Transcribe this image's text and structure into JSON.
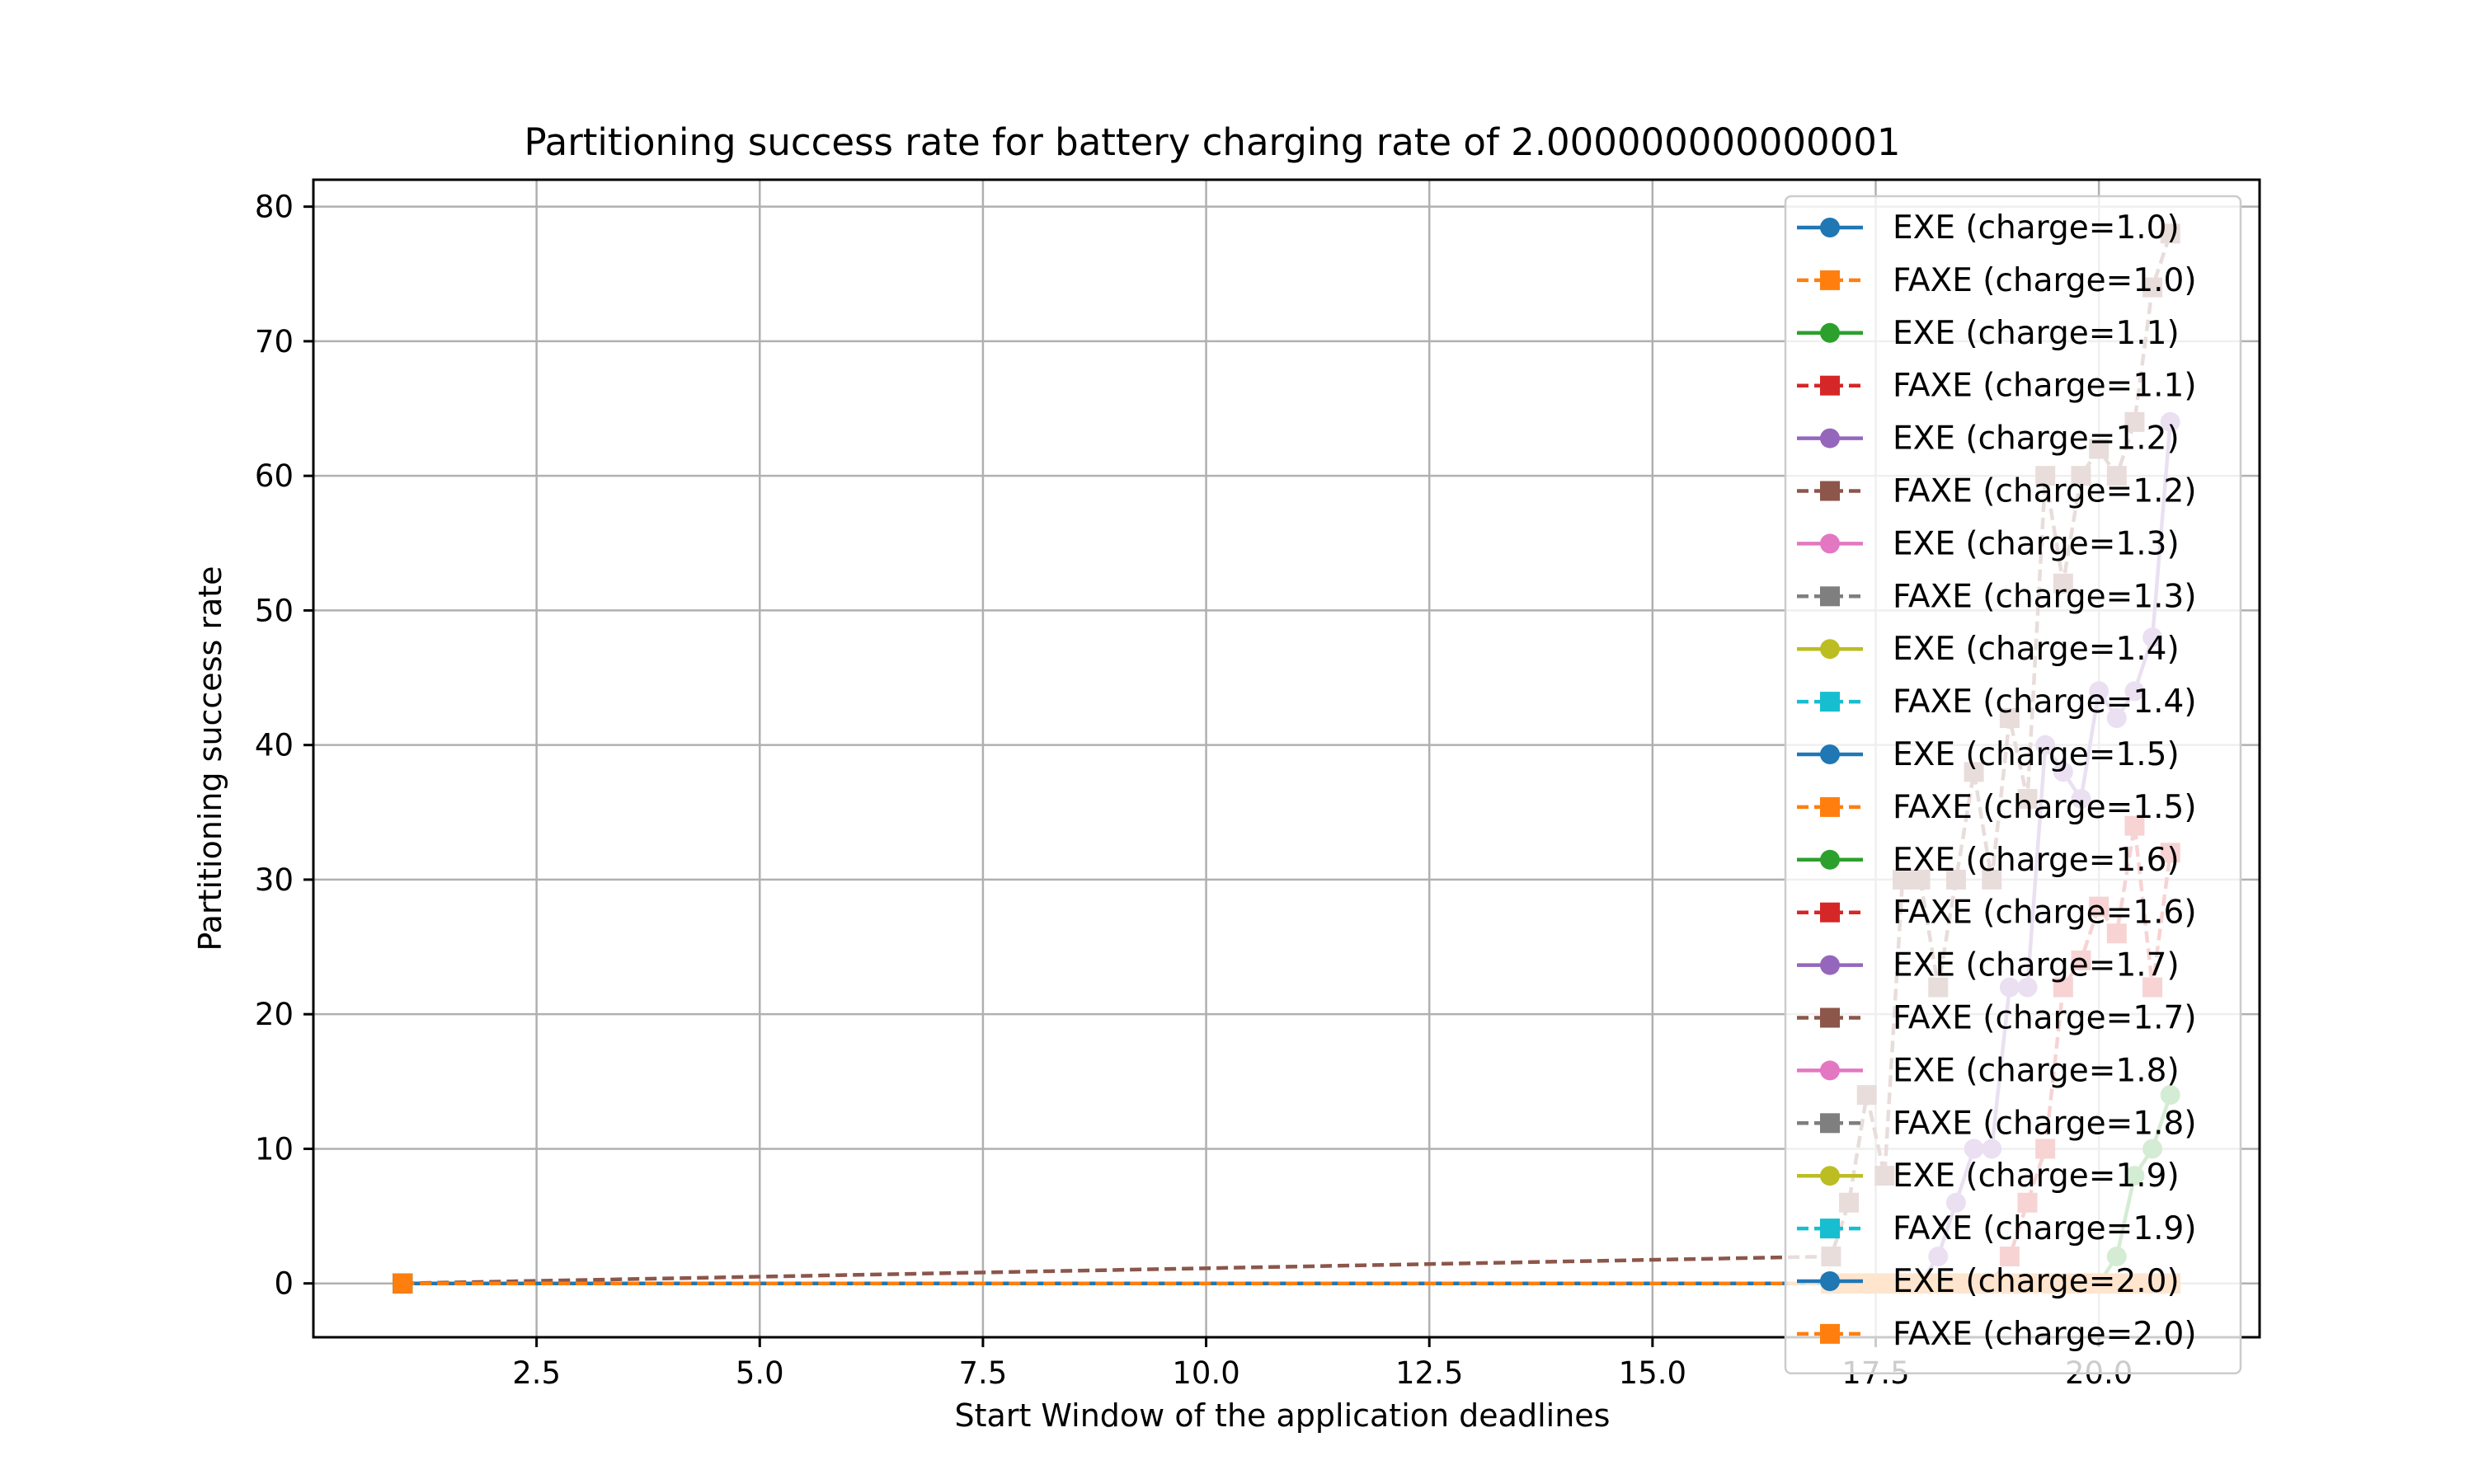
{
  "chart_data": {
    "type": "line",
    "title": "Partitioning success rate for battery charging rate of 2.000000000000001",
    "xlabel": "Start Window of the application deadlines",
    "ylabel": "Partitioning success rate",
    "xlim": [
      0.0,
      21.8
    ],
    "ylim": [
      -4,
      82
    ],
    "x_ticks": [
      2.5,
      5.0,
      7.5,
      10.0,
      12.5,
      15.0,
      17.5,
      20.0
    ],
    "x_tick_labels": [
      "2.5",
      "5.0",
      "7.5",
      "10.0",
      "12.5",
      "15.0",
      "17.5",
      "20.0"
    ],
    "y_ticks": [
      0,
      10,
      20,
      30,
      40,
      50,
      60,
      70,
      80
    ],
    "y_tick_labels": [
      "0",
      "10",
      "20",
      "30",
      "40",
      "50",
      "60",
      "70",
      "80"
    ],
    "grid": true,
    "legend_position": "upper-right",
    "x": [
      1.0,
      17.0,
      17.2,
      17.4,
      17.6,
      17.8,
      18.0,
      18.2,
      18.4,
      18.6,
      18.8,
      19.0,
      19.2,
      19.4,
      19.6,
      19.8,
      20.0,
      20.2,
      20.4,
      20.6,
      20.8
    ],
    "series": [
      {
        "name": "EXE (charge=1.0)",
        "color": "#1f77b4",
        "marker": "circle",
        "linestyle": "solid",
        "values": [
          0,
          0,
          0,
          0,
          0,
          0,
          0,
          0,
          0,
          0,
          0,
          0,
          0,
          0,
          0,
          0,
          0,
          0,
          0,
          0,
          0
        ]
      },
      {
        "name": "FAXE (charge=1.0)",
        "color": "#ff7f0e",
        "marker": "square",
        "linestyle": "dashed",
        "values": [
          0,
          0,
          0,
          0,
          0,
          0,
          0,
          0,
          0,
          0,
          0,
          0,
          0,
          0,
          0,
          0,
          0,
          0,
          0,
          0,
          0
        ]
      },
      {
        "name": "EXE (charge=1.1)",
        "color": "#2ca02c",
        "marker": "circle",
        "linestyle": "solid",
        "values": [
          0,
          0,
          0,
          0,
          0,
          0,
          0,
          0,
          0,
          0,
          0,
          0,
          0,
          0,
          0,
          0,
          0,
          2,
          8,
          10,
          14
        ]
      },
      {
        "name": "FAXE (charge=1.1)",
        "color": "#d62728",
        "marker": "square",
        "linestyle": "dashed",
        "values": [
          0,
          0,
          0,
          0,
          0,
          0,
          0,
          0,
          0,
          0,
          0,
          2,
          6,
          10,
          22,
          24,
          28,
          26,
          34,
          22,
          32
        ]
      },
      {
        "name": "EXE (charge=1.2)",
        "color": "#9467bd",
        "marker": "circle",
        "linestyle": "solid",
        "values": [
          0,
          0,
          0,
          0,
          0,
          0,
          0,
          2,
          6,
          10,
          10,
          22,
          22,
          40,
          38,
          36,
          44,
          42,
          44,
          48,
          64
        ]
      },
      {
        "name": "FAXE (charge=1.2)",
        "color": "#8c564b",
        "marker": "square",
        "linestyle": "dashed",
        "values": [
          0,
          2,
          6,
          14,
          8,
          30,
          30,
          22,
          30,
          38,
          30,
          42,
          36,
          60,
          52,
          60,
          62,
          60,
          64,
          74,
          78
        ]
      },
      {
        "name": "EXE (charge=1.3)",
        "color": "#e377c2",
        "marker": "circle",
        "linestyle": "solid",
        "values": [
          0,
          0,
          0,
          0,
          0,
          0,
          0,
          0,
          0,
          0,
          0,
          0,
          0,
          0,
          0,
          0,
          0,
          0,
          0,
          0,
          0
        ]
      },
      {
        "name": "FAXE (charge=1.3)",
        "color": "#7f7f7f",
        "marker": "square",
        "linestyle": "dashed",
        "values": [
          0,
          0,
          0,
          0,
          0,
          0,
          0,
          0,
          0,
          0,
          0,
          0,
          0,
          0,
          0,
          0,
          0,
          0,
          0,
          0,
          0
        ]
      },
      {
        "name": "EXE (charge=1.4)",
        "color": "#bcbd22",
        "marker": "circle",
        "linestyle": "solid",
        "values": [
          0,
          0,
          0,
          0,
          0,
          0,
          0,
          0,
          0,
          0,
          0,
          0,
          0,
          0,
          0,
          0,
          0,
          0,
          0,
          0,
          0
        ]
      },
      {
        "name": "FAXE (charge=1.4)",
        "color": "#17becf",
        "marker": "square",
        "linestyle": "dashed",
        "values": [
          0,
          0,
          0,
          0,
          0,
          0,
          0,
          0,
          0,
          0,
          0,
          0,
          0,
          0,
          0,
          0,
          0,
          0,
          0,
          0,
          0
        ]
      },
      {
        "name": "EXE (charge=1.5)",
        "color": "#1f77b4",
        "marker": "circle",
        "linestyle": "solid",
        "values": [
          0,
          0,
          0,
          0,
          0,
          0,
          0,
          0,
          0,
          0,
          0,
          0,
          0,
          0,
          0,
          0,
          0,
          0,
          0,
          0,
          0
        ]
      },
      {
        "name": "FAXE (charge=1.5)",
        "color": "#ff7f0e",
        "marker": "square",
        "linestyle": "dashed",
        "values": [
          0,
          0,
          0,
          0,
          0,
          0,
          0,
          0,
          0,
          0,
          0,
          0,
          0,
          0,
          0,
          0,
          0,
          0,
          0,
          0,
          0
        ]
      },
      {
        "name": "EXE (charge=1.6)",
        "color": "#2ca02c",
        "marker": "circle",
        "linestyle": "solid",
        "values": [
          0,
          0,
          0,
          0,
          0,
          0,
          0,
          0,
          0,
          0,
          0,
          0,
          0,
          0,
          0,
          0,
          0,
          0,
          0,
          0,
          0
        ]
      },
      {
        "name": "FAXE (charge=1.6)",
        "color": "#d62728",
        "marker": "square",
        "linestyle": "dashed",
        "values": [
          0,
          0,
          0,
          0,
          0,
          0,
          0,
          0,
          0,
          0,
          0,
          0,
          0,
          0,
          0,
          0,
          0,
          0,
          0,
          0,
          0
        ]
      },
      {
        "name": "EXE (charge=1.7)",
        "color": "#9467bd",
        "marker": "circle",
        "linestyle": "solid",
        "values": [
          0,
          0,
          0,
          0,
          0,
          0,
          0,
          0,
          0,
          0,
          0,
          0,
          0,
          0,
          0,
          0,
          0,
          0,
          0,
          0,
          0
        ]
      },
      {
        "name": "FAXE (charge=1.7)",
        "color": "#8c564b",
        "marker": "square",
        "linestyle": "dashed",
        "values": [
          0,
          0,
          0,
          0,
          0,
          0,
          0,
          0,
          0,
          0,
          0,
          0,
          0,
          0,
          0,
          0,
          0,
          0,
          0,
          0,
          0
        ]
      },
      {
        "name": "EXE (charge=1.8)",
        "color": "#e377c2",
        "marker": "circle",
        "linestyle": "solid",
        "values": [
          0,
          0,
          0,
          0,
          0,
          0,
          0,
          0,
          0,
          0,
          0,
          0,
          0,
          0,
          0,
          0,
          0,
          0,
          0,
          0,
          0
        ]
      },
      {
        "name": "FAXE (charge=1.8)",
        "color": "#7f7f7f",
        "marker": "square",
        "linestyle": "dashed",
        "values": [
          0,
          0,
          0,
          0,
          0,
          0,
          0,
          0,
          0,
          0,
          0,
          0,
          0,
          0,
          0,
          0,
          0,
          0,
          0,
          0,
          0
        ]
      },
      {
        "name": "EXE (charge=1.9)",
        "color": "#bcbd22",
        "marker": "circle",
        "linestyle": "solid",
        "values": [
          0,
          0,
          0,
          0,
          0,
          0,
          0,
          0,
          0,
          0,
          0,
          0,
          0,
          0,
          0,
          0,
          0,
          0,
          0,
          0,
          0
        ]
      },
      {
        "name": "FAXE (charge=1.9)",
        "color": "#17becf",
        "marker": "square",
        "linestyle": "dashed",
        "values": [
          0,
          0,
          0,
          0,
          0,
          0,
          0,
          0,
          0,
          0,
          0,
          0,
          0,
          0,
          0,
          0,
          0,
          0,
          0,
          0,
          0
        ]
      },
      {
        "name": "EXE (charge=2.0)",
        "color": "#1f77b4",
        "marker": "circle",
        "linestyle": "solid",
        "values": [
          0,
          0,
          0,
          0,
          0,
          0,
          0,
          0,
          0,
          0,
          0,
          0,
          0,
          0,
          0,
          0,
          0,
          0,
          0,
          0,
          0
        ]
      },
      {
        "name": "FAXE (charge=2.0)",
        "color": "#ff7f0e",
        "marker": "square",
        "linestyle": "dashed",
        "values": [
          0,
          0,
          0,
          0,
          0,
          0,
          0,
          0,
          0,
          0,
          0,
          0,
          0,
          0,
          0,
          0,
          0,
          0,
          0,
          0,
          0
        ]
      }
    ]
  }
}
